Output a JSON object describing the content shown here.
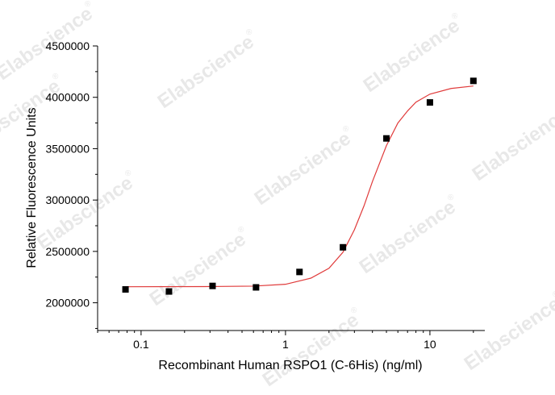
{
  "chart_data": {
    "type": "scatter",
    "x_label": "Recombinant Human RSPO1 (C-6His) (ng/ml)",
    "y_label": "Relative Fluorescence Units",
    "watermark": "Elabscience",
    "watermark_mark": "®",
    "xscale": "log",
    "xlim": [
      0.05,
      24
    ],
    "xticks": [
      0.1,
      1,
      10
    ],
    "xminorticks": [
      0.05,
      0.06,
      0.07,
      0.08,
      0.09,
      0.2,
      0.3,
      0.4,
      0.5,
      0.6,
      0.7,
      0.8,
      0.9,
      2,
      3,
      4,
      5,
      6,
      7,
      8,
      9,
      20
    ],
    "ylim": [
      1730000,
      4500000
    ],
    "yticks": [
      2000000,
      2500000,
      3000000,
      3500000,
      4000000,
      4500000
    ],
    "yminorticks": [
      1750000,
      2250000,
      2750000,
      3250000,
      3750000,
      4250000
    ],
    "series": [
      {
        "color": "#000000",
        "marker": "square",
        "x": [
          0.078,
          0.156,
          0.3125,
          0.625,
          1.25,
          2.5,
          5,
          10,
          20
        ],
        "values": [
          2130000,
          2110000,
          2164000,
          2150000,
          2300000,
          2540000,
          3600000,
          3950000,
          4160000
        ]
      },
      {
        "color": "#e03a3a",
        "marker": "line",
        "x": [
          0.078,
          0.3,
          0.6,
          1,
          1.5,
          2,
          2.5,
          3,
          3.5,
          4,
          5,
          6,
          7,
          8,
          10,
          14,
          20
        ],
        "values": [
          2156000,
          2158000,
          2162000,
          2180000,
          2240000,
          2336000,
          2492000,
          2711000,
          2945000,
          3180000,
          3530000,
          3750000,
          3867000,
          3953000,
          4031000,
          4086000,
          4110000
        ]
      }
    ]
  }
}
